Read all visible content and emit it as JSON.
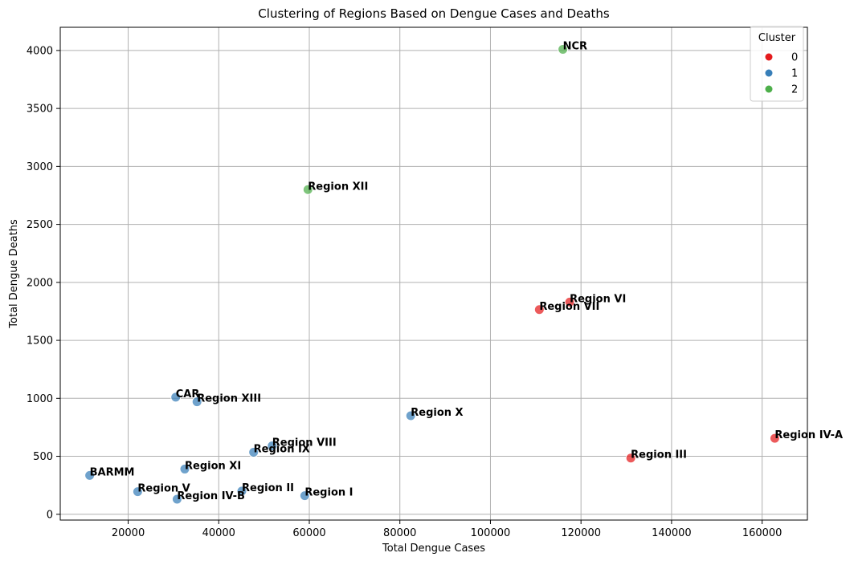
{
  "chart_data": {
    "type": "scatter",
    "title": "Clustering of Regions Based on Dengue Cases and Deaths",
    "xlabel": "Total Dengue Cases",
    "ylabel": "Total Dengue Deaths",
    "xlim": [
      5000,
      170000
    ],
    "ylim": [
      -50,
      4200
    ],
    "xticks": [
      20000,
      40000,
      60000,
      80000,
      100000,
      120000,
      140000,
      160000
    ],
    "yticks": [
      0,
      500,
      1000,
      1500,
      2000,
      2500,
      3000,
      3500,
      4000
    ],
    "grid": true,
    "legend": {
      "title": "Cluster",
      "placement": "top-right",
      "entries": [
        {
          "label": "0",
          "color": "#e41a1c"
        },
        {
          "label": "1",
          "color": "#377eb8"
        },
        {
          "label": "2",
          "color": "#4daf4a"
        }
      ]
    },
    "points": [
      {
        "label": "NCR",
        "x": 116000,
        "y": 4010,
        "cluster": 2
      },
      {
        "label": "Region XII",
        "x": 59700,
        "y": 2800,
        "cluster": 2
      },
      {
        "label": "Region VI",
        "x": 117500,
        "y": 1830,
        "cluster": 0
      },
      {
        "label": "Region VII",
        "x": 110800,
        "y": 1765,
        "cluster": 0
      },
      {
        "label": "CAR",
        "x": 30500,
        "y": 1010,
        "cluster": 1
      },
      {
        "label": "Region XIII",
        "x": 35200,
        "y": 970,
        "cluster": 1
      },
      {
        "label": "Region X",
        "x": 82400,
        "y": 850,
        "cluster": 1
      },
      {
        "label": "Region IV-A",
        "x": 162800,
        "y": 655,
        "cluster": 0
      },
      {
        "label": "Region VIII",
        "x": 51800,
        "y": 590,
        "cluster": 1
      },
      {
        "label": "Region IX",
        "x": 47700,
        "y": 535,
        "cluster": 1
      },
      {
        "label": "Region III",
        "x": 131000,
        "y": 485,
        "cluster": 0
      },
      {
        "label": "Region XI",
        "x": 32500,
        "y": 390,
        "cluster": 1
      },
      {
        "label": "BARMM",
        "x": 11500,
        "y": 335,
        "cluster": 1
      },
      {
        "label": "Region II",
        "x": 45100,
        "y": 200,
        "cluster": 1
      },
      {
        "label": "Region V",
        "x": 22100,
        "y": 195,
        "cluster": 1
      },
      {
        "label": "Region I",
        "x": 59000,
        "y": 160,
        "cluster": 1
      },
      {
        "label": "Region IV-B",
        "x": 30800,
        "y": 130,
        "cluster": 1
      }
    ]
  }
}
